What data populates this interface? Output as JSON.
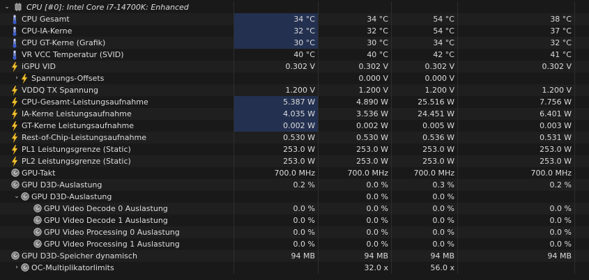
{
  "group": {
    "arrow": "⌄",
    "icon": "chip-icon",
    "label": "CPU [#0]: Intel Core i7-14700K: Enhanced"
  },
  "rows": [
    {
      "indent": 0,
      "arrow": "",
      "icon": "thermometer-icon",
      "label": "CPU Gesamt",
      "cur": "34 °C",
      "min": "34 °C",
      "max": "54 °C",
      "avg": "38 °C",
      "hl": true
    },
    {
      "indent": 0,
      "arrow": "",
      "icon": "thermometer-icon",
      "label": "CPU-IA-Kerne",
      "cur": "32 °C",
      "min": "32 °C",
      "max": "54 °C",
      "avg": "37 °C",
      "hl": true
    },
    {
      "indent": 0,
      "arrow": "",
      "icon": "thermometer-icon",
      "label": "CPU GT-Kerne (Grafik)",
      "cur": "30 °C",
      "min": "30 °C",
      "max": "34 °C",
      "avg": "32 °C",
      "hl": true
    },
    {
      "indent": 0,
      "arrow": "",
      "icon": "thermometer-icon",
      "label": "VR VCC Temperatur (SVID)",
      "cur": "40 °C",
      "min": "40 °C",
      "max": "42 °C",
      "avg": "41 °C",
      "hl": false
    },
    {
      "indent": 0,
      "arrow": "",
      "icon": "lightning-icon",
      "label": "iGPU VID",
      "cur": "0.302 V",
      "min": "0.302 V",
      "max": "0.302 V",
      "avg": "0.302 V",
      "hl": false
    },
    {
      "indent": 1,
      "arrow": "›",
      "icon": "lightning-icon",
      "label": "Spannungs-Offsets",
      "cur": "",
      "min": "0.000 V",
      "max": "0.000 V",
      "avg": "",
      "hl": false
    },
    {
      "indent": 0,
      "arrow": "",
      "icon": "lightning-icon",
      "label": "VDDQ TX Spannung",
      "cur": "1.200 V",
      "min": "1.200 V",
      "max": "1.200 V",
      "avg": "1.200 V",
      "hl": false
    },
    {
      "indent": 0,
      "arrow": "",
      "icon": "lightning-icon",
      "label": "CPU-Gesamt-Leistungsaufnahme",
      "cur": "5.387 W",
      "min": "4.890 W",
      "max": "25.516 W",
      "avg": "7.756 W",
      "hl": true
    },
    {
      "indent": 0,
      "arrow": "",
      "icon": "lightning-icon",
      "label": "IA-Kerne Leistungsaufnahme",
      "cur": "4.035 W",
      "min": "3.536 W",
      "max": "24.451 W",
      "avg": "6.401 W",
      "hl": true
    },
    {
      "indent": 0,
      "arrow": "",
      "icon": "lightning-icon",
      "label": "GT-Kerne Leistungsaufnahme",
      "cur": "0.002 W",
      "min": "0.002 W",
      "max": "0.005 W",
      "avg": "0.003 W",
      "hl": true
    },
    {
      "indent": 0,
      "arrow": "",
      "icon": "lightning-icon",
      "label": "Rest-of-Chip-Leistungsaufnahme",
      "cur": "0.530 W",
      "min": "0.530 W",
      "max": "0.536 W",
      "avg": "0.531 W",
      "hl": false
    },
    {
      "indent": 0,
      "arrow": "",
      "icon": "lightning-icon",
      "label": "PL1 Leistungsgrenze (Static)",
      "cur": "253.0 W",
      "min": "253.0 W",
      "max": "253.0 W",
      "avg": "253.0 W",
      "hl": false
    },
    {
      "indent": 0,
      "arrow": "",
      "icon": "lightning-icon",
      "label": "PL2 Leistungsgrenze (Static)",
      "cur": "253.0 W",
      "min": "253.0 W",
      "max": "253.0 W",
      "avg": "253.0 W",
      "hl": false
    },
    {
      "indent": 0,
      "arrow": "",
      "icon": "gauge-icon",
      "label": "GPU-Takt",
      "cur": "700.0 MHz",
      "min": "700.0 MHz",
      "max": "700.0 MHz",
      "avg": "700.0 MHz",
      "hl": false
    },
    {
      "indent": 0,
      "arrow": "",
      "icon": "gauge-icon",
      "label": "GPU D3D-Auslastung",
      "cur": "0.2 %",
      "min": "0.0 %",
      "max": "0.3 %",
      "avg": "0.2 %",
      "hl": false
    },
    {
      "indent": 1,
      "arrow": "⌄",
      "icon": "gauge-icon",
      "label": "GPU D3D-Auslastung",
      "cur": "",
      "min": "0.0 %",
      "max": "0.0 %",
      "avg": "",
      "hl": false
    },
    {
      "indent": 2,
      "arrow": "",
      "icon": "gauge-icon",
      "label": "GPU Video Decode 0 Auslastung",
      "cur": "0.0 %",
      "min": "0.0 %",
      "max": "0.0 %",
      "avg": "0.0 %",
      "hl": false
    },
    {
      "indent": 2,
      "arrow": "",
      "icon": "gauge-icon",
      "label": "GPU Video Decode 1 Auslastung",
      "cur": "0.0 %",
      "min": "0.0 %",
      "max": "0.0 %",
      "avg": "0.0 %",
      "hl": false
    },
    {
      "indent": 2,
      "arrow": "",
      "icon": "gauge-icon",
      "label": "GPU Video Processing 0 Auslastung",
      "cur": "0.0 %",
      "min": "0.0 %",
      "max": "0.0 %",
      "avg": "0.0 %",
      "hl": false
    },
    {
      "indent": 2,
      "arrow": "",
      "icon": "gauge-icon",
      "label": "GPU Video Processing 1 Auslastung",
      "cur": "0.0 %",
      "min": "0.0 %",
      "max": "0.0 %",
      "avg": "0.0 %",
      "hl": false
    },
    {
      "indent": 0,
      "arrow": "",
      "icon": "gauge-icon",
      "label": "GPU D3D-Speicher dynamisch",
      "cur": "94 MB",
      "min": "94 MB",
      "max": "94 MB",
      "avg": "94 MB",
      "hl": false
    },
    {
      "indent": 1,
      "arrow": "›",
      "icon": "gauge-icon",
      "label": "OC-Multiplikatorlimits",
      "cur": "",
      "min": "32.0 x",
      "max": "56.0 x",
      "avg": "",
      "hl": false
    }
  ],
  "colors": {
    "background": "#191919",
    "row_alt": "#1f1f1f",
    "highlight": "#233050",
    "text": "#dcdcdc"
  }
}
